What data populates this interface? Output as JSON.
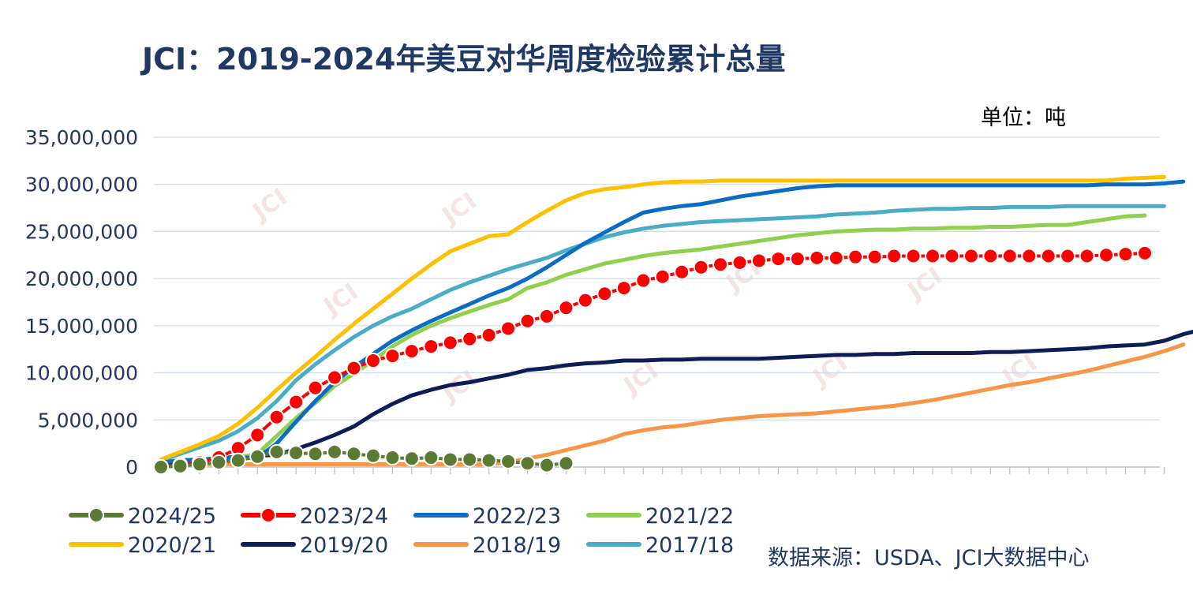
{
  "chart_data": {
    "type": "line",
    "title": "JCI：2019-2024年美豆对华周度检验累计总量",
    "unit_label": "单位：吨",
    "source": "数据来源：USDA、JCI大数据中心",
    "watermark": "JCI",
    "ylim": [
      0,
      35000000
    ],
    "yticks": [
      0,
      5000000,
      10000000,
      15000000,
      20000000,
      25000000,
      30000000,
      35000000
    ],
    "ytick_labels": [
      "0",
      "5,000,000",
      "10,000,000",
      "15,000,000",
      "20,000,000",
      "25,000,000",
      "30,000,000",
      "35,000,000"
    ],
    "xlabel": "",
    "ylabel": "",
    "grid": true,
    "legend_position": "bottom",
    "series": [
      {
        "name": "2024/25",
        "color": "#5b7a34",
        "marker": true,
        "values": [
          0,
          100000,
          300000,
          500000,
          700000,
          1100000,
          1600000,
          1500000,
          1400000,
          1600000,
          1400000,
          1200000,
          1000000,
          900000,
          1000000,
          800000,
          800000,
          700000,
          600000,
          400000,
          200000,
          400000
        ]
      },
      {
        "name": "2023/24",
        "color": "#ff0000",
        "marker": true,
        "values": [
          0,
          200000,
          500000,
          1000000,
          2000000,
          3400000,
          5300000,
          6900000,
          8400000,
          9500000,
          10500000,
          11300000,
          11800000,
          12300000,
          12800000,
          13200000,
          13600000,
          14000000,
          14700000,
          15500000,
          16000000,
          16900000,
          17700000,
          18400000,
          19000000,
          19800000,
          20200000,
          20700000,
          21200000,
          21500000,
          21700000,
          21900000,
          22100000,
          22100000,
          22200000,
          22200000,
          22300000,
          22300000,
          22400000,
          22400000,
          22400000,
          22400000,
          22400000,
          22400000,
          22400000,
          22400000,
          22400000,
          22400000,
          22400000,
          22500000,
          22600000,
          22700000
        ]
      },
      {
        "name": "2022/23",
        "color": "#0b6cc4",
        "marker": false,
        "values": [
          500000,
          700000,
          800000,
          900000,
          1000000,
          1000000,
          2500000,
          4800000,
          7000000,
          9000000,
          10600000,
          12000000,
          13400000,
          14500000,
          15500000,
          16400000,
          17300000,
          18200000,
          19000000,
          20000000,
          21200000,
          22500000,
          23800000,
          24900000,
          26000000,
          27000000,
          27400000,
          27700000,
          27900000,
          28300000,
          28700000,
          29000000,
          29300000,
          29600000,
          29800000,
          29900000,
          29900000,
          29900000,
          29900000,
          29900000,
          29900000,
          29900000,
          29900000,
          29900000,
          29900000,
          29900000,
          29900000,
          29900000,
          29900000,
          30000000,
          30000000,
          30000000,
          30100000,
          30300000
        ]
      },
      {
        "name": "2021/22",
        "color": "#8fd14f",
        "marker": false,
        "values": [
          600000,
          700000,
          800000,
          900000,
          1000000,
          1400000,
          3300000,
          5200000,
          6800000,
          8600000,
          9900000,
          11300000,
          12800000,
          14000000,
          15000000,
          15800000,
          16500000,
          17200000,
          17800000,
          19000000,
          19600000,
          20400000,
          21000000,
          21600000,
          22000000,
          22400000,
          22700000,
          22900000,
          23100000,
          23400000,
          23700000,
          24000000,
          24300000,
          24600000,
          24800000,
          25000000,
          25100000,
          25200000,
          25200000,
          25300000,
          25300000,
          25400000,
          25400000,
          25500000,
          25500000,
          25600000,
          25700000,
          25700000,
          26000000,
          26300000,
          26600000,
          26700000
        ]
      },
      {
        "name": "2020/21",
        "color": "#ffc000",
        "marker": false,
        "values": [
          800000,
          1600000,
          2400000,
          3300000,
          4600000,
          6300000,
          8200000,
          10000000,
          11700000,
          13500000,
          15200000,
          16800000,
          18400000,
          20000000,
          21500000,
          22900000,
          23700000,
          24500000,
          24700000,
          26000000,
          27200000,
          28300000,
          29100000,
          29500000,
          29700000,
          30000000,
          30200000,
          30300000,
          30300000,
          30400000,
          30400000,
          30400000,
          30400000,
          30400000,
          30400000,
          30400000,
          30400000,
          30400000,
          30400000,
          30400000,
          30400000,
          30400000,
          30400000,
          30400000,
          30400000,
          30400000,
          30400000,
          30400000,
          30400000,
          30400000,
          30600000,
          30700000,
          30800000
        ]
      },
      {
        "name": "2019/20",
        "color": "#0d1d57",
        "marker": false,
        "values": [
          400000,
          600000,
          800000,
          900000,
          1100000,
          1200000,
          1300000,
          1900000,
          2600000,
          3400000,
          4300000,
          5600000,
          6700000,
          7600000,
          8200000,
          8700000,
          9000000,
          9400000,
          9800000,
          10300000,
          10500000,
          10800000,
          11000000,
          11100000,
          11300000,
          11300000,
          11400000,
          11400000,
          11500000,
          11500000,
          11500000,
          11500000,
          11600000,
          11700000,
          11800000,
          11900000,
          11900000,
          12000000,
          12000000,
          12100000,
          12100000,
          12100000,
          12100000,
          12200000,
          12200000,
          12300000,
          12400000,
          12500000,
          12600000,
          12800000,
          12900000,
          13000000,
          13400000,
          14100000,
          14600000
        ]
      },
      {
        "name": "2018/19",
        "color": "#f79646",
        "marker": false,
        "values": [
          300000,
          300000,
          300000,
          300000,
          300000,
          300000,
          300000,
          300000,
          300000,
          300000,
          300000,
          300000,
          300000,
          300000,
          300000,
          300000,
          300000,
          300000,
          500000,
          900000,
          1300000,
          1800000,
          2300000,
          2800000,
          3500000,
          3900000,
          4200000,
          4400000,
          4700000,
          5000000,
          5200000,
          5400000,
          5500000,
          5600000,
          5700000,
          5900000,
          6100000,
          6300000,
          6500000,
          6800000,
          7100000,
          7500000,
          7900000,
          8300000,
          8700000,
          9000000,
          9400000,
          9800000,
          10200000,
          10700000,
          11200000,
          11700000,
          12300000,
          13000000
        ]
      },
      {
        "name": "2017/18",
        "color": "#4bacc6",
        "marker": false,
        "values": [
          700000,
          1400000,
          2100000,
          2800000,
          3800000,
          5200000,
          7000000,
          9200000,
          10900000,
          12400000,
          13800000,
          15000000,
          16000000,
          16800000,
          17800000,
          18800000,
          19600000,
          20300000,
          21000000,
          21600000,
          22200000,
          23000000,
          23700000,
          24400000,
          24900000,
          25300000,
          25600000,
          25800000,
          26000000,
          26100000,
          26200000,
          26300000,
          26400000,
          26500000,
          26600000,
          26800000,
          26900000,
          27000000,
          27200000,
          27300000,
          27400000,
          27400000,
          27500000,
          27500000,
          27600000,
          27600000,
          27600000,
          27700000,
          27700000,
          27700000,
          27700000,
          27700000,
          27700000
        ]
      }
    ]
  }
}
